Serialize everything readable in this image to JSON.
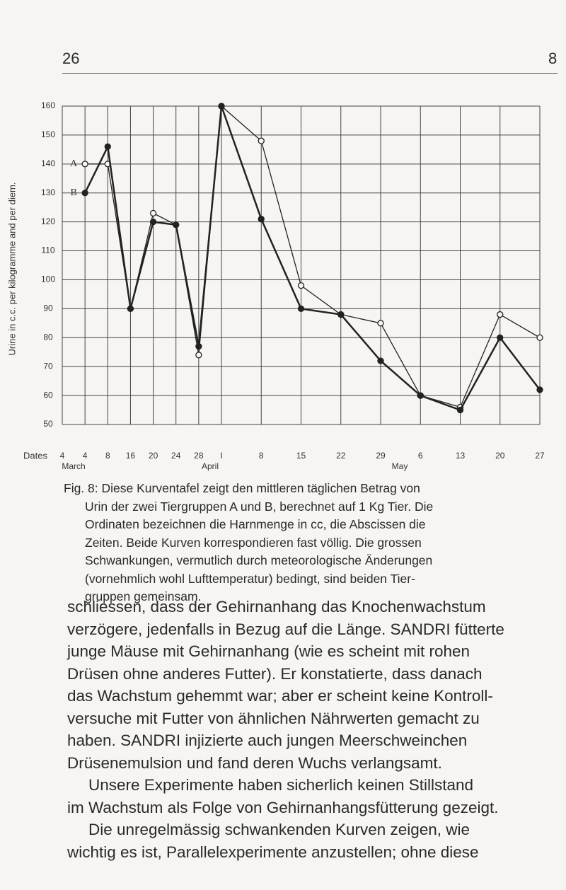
{
  "header": {
    "page_number": "26",
    "signature": "8"
  },
  "chart_data": {
    "type": "line",
    "y_label": "Urine in c.c. per kilogramme and per diem.",
    "x_label": "Dates",
    "months": [
      "March",
      "April",
      "May"
    ],
    "x": [
      4,
      8,
      12,
      16,
      20,
      24,
      28,
      35,
      42,
      49,
      56,
      63,
      70,
      77,
      84
    ],
    "series": [
      {
        "name": "A",
        "color": "#222222",
        "values": [
          140,
          140,
          90,
          123,
          119,
          74,
          160,
          148,
          98,
          88,
          85,
          60,
          56,
          88,
          80
        ]
      },
      {
        "name": "B",
        "color": "#222222",
        "values": [
          130,
          146,
          90,
          120,
          119,
          77,
          160,
          121,
          90,
          88,
          72,
          60,
          55,
          80,
          62
        ]
      }
    ],
    "xlim": [
      0,
      84
    ],
    "ylim": [
      50,
      160
    ],
    "xticks": [
      {
        "value": 0,
        "label": "4"
      },
      4,
      8,
      {
        "value": 12,
        "label": "16"
      },
      {
        "value": 16,
        "label": "20"
      },
      {
        "value": 20,
        "label": "24"
      },
      {
        "value": 24,
        "label": "28"
      },
      {
        "value": 28,
        "label": "I"
      },
      {
        "value": 35,
        "label": "8"
      },
      {
        "value": 42,
        "label": "15"
      },
      {
        "value": 49,
        "label": "22"
      },
      {
        "value": 56,
        "label": "29"
      },
      {
        "value": 63,
        "label": "6"
      },
      {
        "value": 70,
        "label": "13"
      },
      {
        "value": 77,
        "label": "20"
      },
      {
        "value": 84,
        "label": "27"
      }
    ],
    "yticks": [
      50,
      60,
      70,
      80,
      90,
      100,
      110,
      120,
      130,
      140,
      150,
      160
    ],
    "grid": true
  },
  "caption": {
    "lines": [
      "Fig. 8: Diese Kurventafel zeigt den mittleren täglichen Betrag von",
      "Urin der zwei Tiergruppen A und B, berechnet auf 1 Kg Tier. Die",
      "Ordinaten bezeichnen die Harnmenge in cc, die Abscissen die",
      "Zeiten. Beide Kurven korrespondieren fast völlig. Die grossen",
      "Schwankungen, vermutlich durch meteorologische Änderungen",
      "(vornehmlich wohl Lufttemperatur) bedingt, sind beiden Tier-",
      "gruppen gemeinsam."
    ]
  },
  "body": {
    "lines": [
      "schliessen, dass der Gehirnanhang das Knochenwachstum",
      "verzögere, jedenfalls in Bezug auf die Länge. SANDRI fütterte",
      "junge Mäuse mit Gehirnanhang (wie es scheint mit rohen",
      "Drüsen ohne anderes Futter). Er konstatierte, dass danach",
      "das Wachstum gehemmt war; aber er scheint keine Kontroll-",
      "versuche mit Futter von ähnlichen Nährwerten gemacht zu",
      "haben. SANDRI injizierte auch jungen Meerschweinchen",
      "Drüsenemulsion und fand deren Wuchs verlangsamt.",
      "Unsere Experimente haben sicherlich keinen Stillstand",
      "im Wachstum als Folge von Gehirnanhangsfütterung gezeigt.",
      "Die unregelmässig schwankenden Kurven zeigen, wie",
      "wichtig es ist, Parallelexperimente anzustellen; ohne diese"
    ]
  }
}
